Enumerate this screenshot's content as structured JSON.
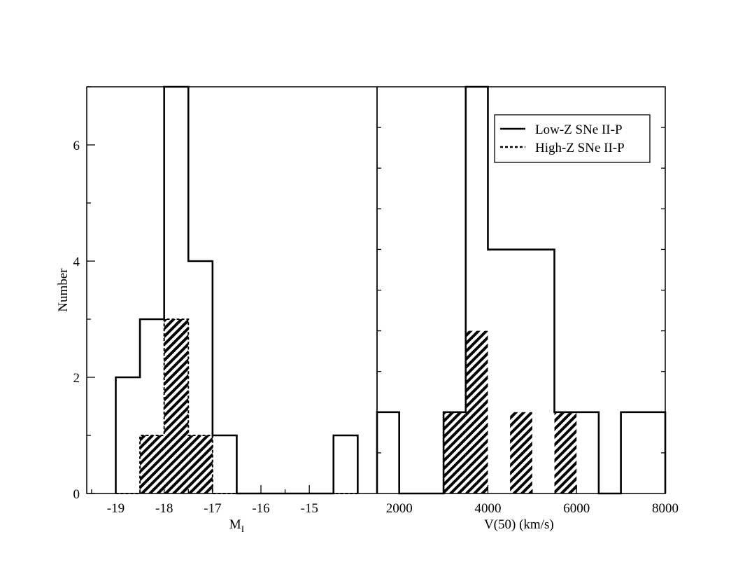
{
  "chart_data": [
    {
      "type": "histogram",
      "xlabel": "M",
      "xlabel_sub": "I",
      "ylabel": "Number",
      "xlim": [
        -19.6,
        -13.6
      ],
      "ylim": [
        0,
        7
      ],
      "xticks": [
        -19,
        -18,
        -17,
        -16,
        -15
      ],
      "xtick_labels": [
        "-19",
        "-18",
        "-17",
        "-16",
        "-15"
      ],
      "yticks": [
        0,
        2,
        4,
        6
      ],
      "ytick_labels": [
        "0",
        "2",
        "4",
        "6"
      ],
      "series": [
        {
          "name": "Low-Z SNe II-P",
          "style": "solid",
          "edges": [
            -19,
            -18.5,
            -18,
            -17.5,
            -17,
            -16.5,
            -16,
            -15.5,
            -15,
            -14.5,
            -14
          ],
          "counts": [
            2,
            3,
            7,
            4,
            1,
            0,
            0,
            0,
            0,
            1
          ]
        },
        {
          "name": "High-Z SNe II-P",
          "style": "hatched",
          "edges": [
            -19,
            -18.5,
            -18,
            -17.5,
            -17,
            -16.5,
            -16,
            -15.5,
            -15,
            -14.5,
            -14
          ],
          "counts": [
            0,
            1,
            3,
            1,
            0,
            0,
            0,
            0,
            0,
            0
          ]
        }
      ]
    },
    {
      "type": "histogram",
      "xlabel": "V(50) (km/s)",
      "xlim": [
        1500,
        8000
      ],
      "ylim": [
        0,
        5
      ],
      "xticks": [
        2000,
        4000,
        6000,
        8000
      ],
      "xtick_labels": [
        "2000",
        "4000",
        "6000",
        "8000"
      ],
      "series": [
        {
          "name": "Low-Z SNe II-P",
          "style": "solid",
          "edges": [
            1500,
            2000,
            2500,
            3000,
            3500,
            4000,
            5500,
            6000,
            6500,
            7000,
            8000
          ],
          "counts": [
            1,
            0,
            0,
            1,
            5,
            3,
            1,
            1,
            0,
            1
          ]
        },
        {
          "name": "High-Z SNe II-P",
          "style": "hatched",
          "edges": [
            3000,
            3500,
            4000,
            4500,
            5000,
            5500,
            6000
          ],
          "counts": [
            1,
            2,
            0,
            1,
            0,
            1
          ]
        }
      ]
    }
  ],
  "legend": {
    "placement": "top-right",
    "entries": [
      {
        "label": "Low-Z SNe II-P",
        "style": "solid"
      },
      {
        "label": "High-Z SNe II-P",
        "style": "dashed"
      }
    ]
  }
}
